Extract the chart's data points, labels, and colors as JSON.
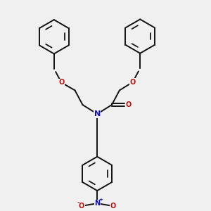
{
  "bg_color": "#f0f0f0",
  "bond_color": "#111111",
  "N_color": "#1111bb",
  "O_color": "#bb1111",
  "line_width": 1.4,
  "fig_size": [
    3.0,
    3.0
  ],
  "dpi": 100,
  "S": 0.072,
  "hex_r": 0.082,
  "xlim": [
    0,
    1
  ],
  "ylim": [
    0,
    1
  ],
  "Nx": 0.46,
  "Ny": 0.455
}
